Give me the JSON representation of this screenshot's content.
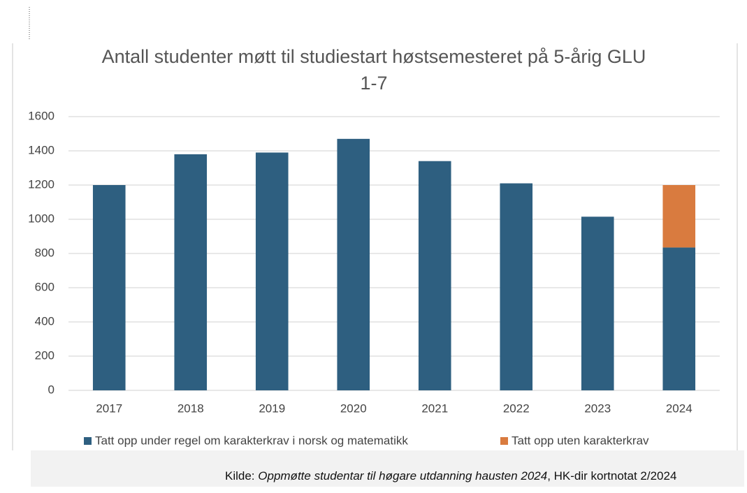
{
  "chart_data": {
    "type": "stacked_bar",
    "title": "Antall studenter møtt til studiestart høstsemesteret på 5-årig GLU 1-7",
    "categories": [
      "2017",
      "2018",
      "2019",
      "2020",
      "2021",
      "2022",
      "2023",
      "2024"
    ],
    "series": [
      {
        "name": "Tatt opp under regel om karakterkrav i norsk og matematikk",
        "color": "#2e5f80",
        "values": [
          1200,
          1380,
          1390,
          1470,
          1340,
          1210,
          1015,
          835
        ]
      },
      {
        "name": "Tatt opp uten karakterkrav",
        "color": "#d97b3f",
        "values": [
          null,
          null,
          null,
          null,
          null,
          null,
          null,
          365
        ]
      }
    ],
    "ylim": [
      0,
      1600
    ],
    "yticks": [
      0,
      200,
      400,
      600,
      800,
      1000,
      1200,
      1400,
      1600
    ],
    "grid": true,
    "legend": "bottom"
  },
  "source": {
    "prefix": "Kilde:",
    "title": "Oppmøtte studentar til høgare utdanning hausten 2024",
    "suffix": ", HK-dir kortnotat 2/2024"
  }
}
